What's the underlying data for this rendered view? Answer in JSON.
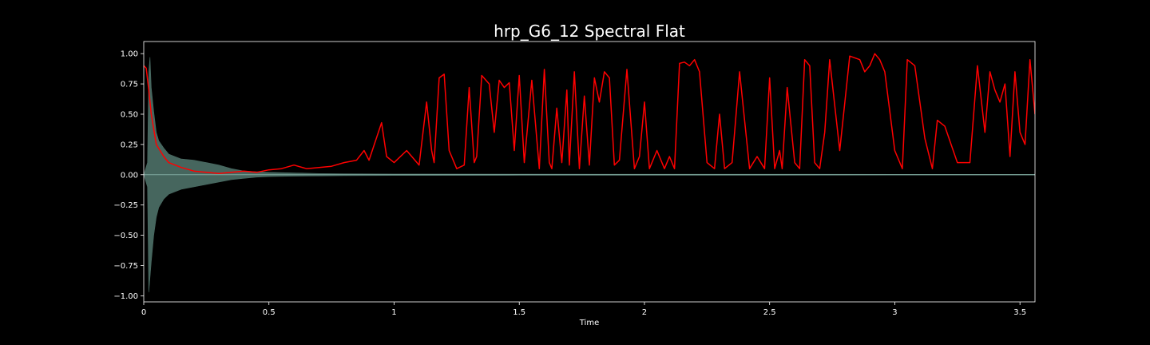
{
  "chart_data": {
    "type": "line",
    "title": "hrp_G6_12 Spectral Flat",
    "xlabel": "Time",
    "ylabel": "",
    "xlim": [
      0,
      3.56
    ],
    "ylim": [
      -1.05,
      1.1
    ],
    "xticks": [
      0,
      0.5,
      1,
      1.5,
      2,
      2.5,
      3,
      3.5
    ],
    "xtick_labels": [
      "0",
      "0.5",
      "1",
      "1.5",
      "2",
      "2.5",
      "3",
      "3.5"
    ],
    "yticks": [
      -1.0,
      -0.75,
      -0.5,
      -0.25,
      0.0,
      0.25,
      0.5,
      0.75,
      1.0
    ],
    "ytick_labels": [
      "−1.00",
      "−0.75",
      "−0.50",
      "−0.25",
      "0.00",
      "0.25",
      "0.50",
      "0.75",
      "1.00"
    ],
    "grid": false,
    "colors": {
      "background": "#000000",
      "axes": "#ffffff",
      "waveform": "#4a6b63",
      "flatness": "#ff0000",
      "text": "#ffffff"
    },
    "series": [
      {
        "name": "waveform envelope",
        "kind": "envelope",
        "color": "#4a6b63",
        "x": [
          0.0,
          0.015,
          0.02,
          0.025,
          0.03,
          0.04,
          0.05,
          0.06,
          0.08,
          0.1,
          0.15,
          0.2,
          0.25,
          0.3,
          0.35,
          0.4,
          0.45,
          0.5,
          0.6,
          0.7,
          0.8,
          1.0,
          1.5,
          2.0,
          2.5,
          3.0,
          3.56
        ],
        "upper": [
          0.0,
          0.1,
          0.85,
          0.97,
          0.72,
          0.52,
          0.35,
          0.28,
          0.22,
          0.17,
          0.13,
          0.12,
          0.1,
          0.08,
          0.05,
          0.03,
          0.025,
          0.02,
          0.015,
          0.01,
          0.008,
          0.006,
          0.005,
          0.004,
          0.004,
          0.003,
          0.003
        ],
        "lower": [
          0.0,
          -0.1,
          -0.97,
          -0.85,
          -0.72,
          -0.5,
          -0.35,
          -0.27,
          -0.2,
          -0.16,
          -0.12,
          -0.1,
          -0.08,
          -0.06,
          -0.04,
          -0.03,
          -0.02,
          -0.015,
          -0.012,
          -0.01,
          -0.008,
          -0.006,
          -0.005,
          -0.004,
          -0.004,
          -0.003,
          -0.003
        ]
      },
      {
        "name": "spectral flatness",
        "kind": "line",
        "color": "#ff0000",
        "x": [
          0.0,
          0.01,
          0.02,
          0.03,
          0.05,
          0.08,
          0.1,
          0.15,
          0.2,
          0.25,
          0.3,
          0.35,
          0.4,
          0.45,
          0.5,
          0.55,
          0.6,
          0.65,
          0.7,
          0.75,
          0.8,
          0.85,
          0.88,
          0.9,
          0.95,
          0.97,
          1.0,
          1.05,
          1.1,
          1.13,
          1.15,
          1.16,
          1.18,
          1.2,
          1.22,
          1.25,
          1.28,
          1.3,
          1.32,
          1.33,
          1.35,
          1.38,
          1.4,
          1.42,
          1.44,
          1.46,
          1.48,
          1.5,
          1.52,
          1.55,
          1.58,
          1.6,
          1.62,
          1.63,
          1.65,
          1.67,
          1.69,
          1.7,
          1.72,
          1.74,
          1.76,
          1.78,
          1.8,
          1.82,
          1.84,
          1.86,
          1.88,
          1.9,
          1.93,
          1.96,
          1.98,
          2.0,
          2.02,
          2.05,
          2.08,
          2.1,
          2.12,
          2.14,
          2.16,
          2.18,
          2.2,
          2.22,
          2.25,
          2.28,
          2.3,
          2.32,
          2.35,
          2.38,
          2.42,
          2.45,
          2.48,
          2.5,
          2.52,
          2.54,
          2.55,
          2.57,
          2.6,
          2.62,
          2.64,
          2.66,
          2.68,
          2.7,
          2.72,
          2.74,
          2.78,
          2.82,
          2.86,
          2.88,
          2.9,
          2.92,
          2.94,
          2.96,
          3.0,
          3.03,
          3.05,
          3.08,
          3.12,
          3.15,
          3.17,
          3.2,
          3.25,
          3.3,
          3.33,
          3.36,
          3.38,
          3.4,
          3.42,
          3.44,
          3.46,
          3.48,
          3.5,
          3.52,
          3.54,
          3.56
        ],
        "y": [
          0.9,
          0.88,
          0.7,
          0.5,
          0.25,
          0.15,
          0.1,
          0.06,
          0.03,
          0.02,
          0.01,
          0.02,
          0.03,
          0.02,
          0.04,
          0.05,
          0.08,
          0.05,
          0.06,
          0.07,
          0.1,
          0.12,
          0.2,
          0.12,
          0.43,
          0.15,
          0.1,
          0.2,
          0.08,
          0.6,
          0.2,
          0.1,
          0.8,
          0.83,
          0.2,
          0.05,
          0.08,
          0.72,
          0.1,
          0.15,
          0.82,
          0.75,
          0.35,
          0.78,
          0.72,
          0.76,
          0.2,
          0.82,
          0.1,
          0.78,
          0.05,
          0.87,
          0.1,
          0.05,
          0.55,
          0.1,
          0.7,
          0.08,
          0.85,
          0.05,
          0.65,
          0.08,
          0.8,
          0.6,
          0.85,
          0.8,
          0.08,
          0.12,
          0.87,
          0.05,
          0.15,
          0.6,
          0.05,
          0.2,
          0.05,
          0.15,
          0.05,
          0.92,
          0.93,
          0.9,
          0.95,
          0.85,
          0.1,
          0.05,
          0.5,
          0.05,
          0.1,
          0.85,
          0.05,
          0.15,
          0.05,
          0.8,
          0.05,
          0.2,
          0.05,
          0.72,
          0.1,
          0.05,
          0.95,
          0.9,
          0.1,
          0.05,
          0.35,
          0.95,
          0.2,
          0.98,
          0.95,
          0.85,
          0.9,
          1.0,
          0.95,
          0.85,
          0.2,
          0.05,
          0.95,
          0.9,
          0.3,
          0.05,
          0.45,
          0.4,
          0.1,
          0.1,
          0.9,
          0.35,
          0.85,
          0.7,
          0.6,
          0.75,
          0.15,
          0.85,
          0.35,
          0.25,
          0.95,
          0.5
        ]
      }
    ]
  }
}
